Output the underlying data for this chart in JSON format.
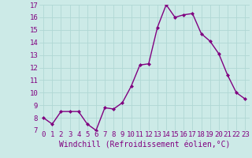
{
  "x": [
    0,
    1,
    2,
    3,
    4,
    5,
    6,
    7,
    8,
    9,
    10,
    11,
    12,
    13,
    14,
    15,
    16,
    17,
    18,
    19,
    20,
    21,
    22,
    23
  ],
  "y": [
    8.0,
    7.5,
    8.5,
    8.5,
    8.5,
    7.5,
    7.0,
    8.8,
    8.7,
    9.2,
    10.5,
    12.2,
    12.3,
    15.2,
    17.0,
    16.0,
    16.2,
    16.3,
    14.7,
    14.1,
    13.1,
    11.4,
    10.0,
    9.5
  ],
  "line_color": "#800080",
  "marker": "D",
  "marker_size": 2.0,
  "bg_color": "#cceae7",
  "grid_color": "#b0d8d4",
  "xlabel": "Windchill (Refroidissement éolien,°C)",
  "ylim": [
    7,
    17
  ],
  "xlim": [
    -0.5,
    23.5
  ],
  "yticks": [
    7,
    8,
    9,
    10,
    11,
    12,
    13,
    14,
    15,
    16,
    17
  ],
  "xticks": [
    0,
    1,
    2,
    3,
    4,
    5,
    6,
    7,
    8,
    9,
    10,
    11,
    12,
    13,
    14,
    15,
    16,
    17,
    18,
    19,
    20,
    21,
    22,
    23
  ],
  "line_width": 1.0,
  "xlabel_fontsize": 7,
  "tick_fontsize": 6.5,
  "tick_color": "#800080",
  "label_color": "#800080"
}
